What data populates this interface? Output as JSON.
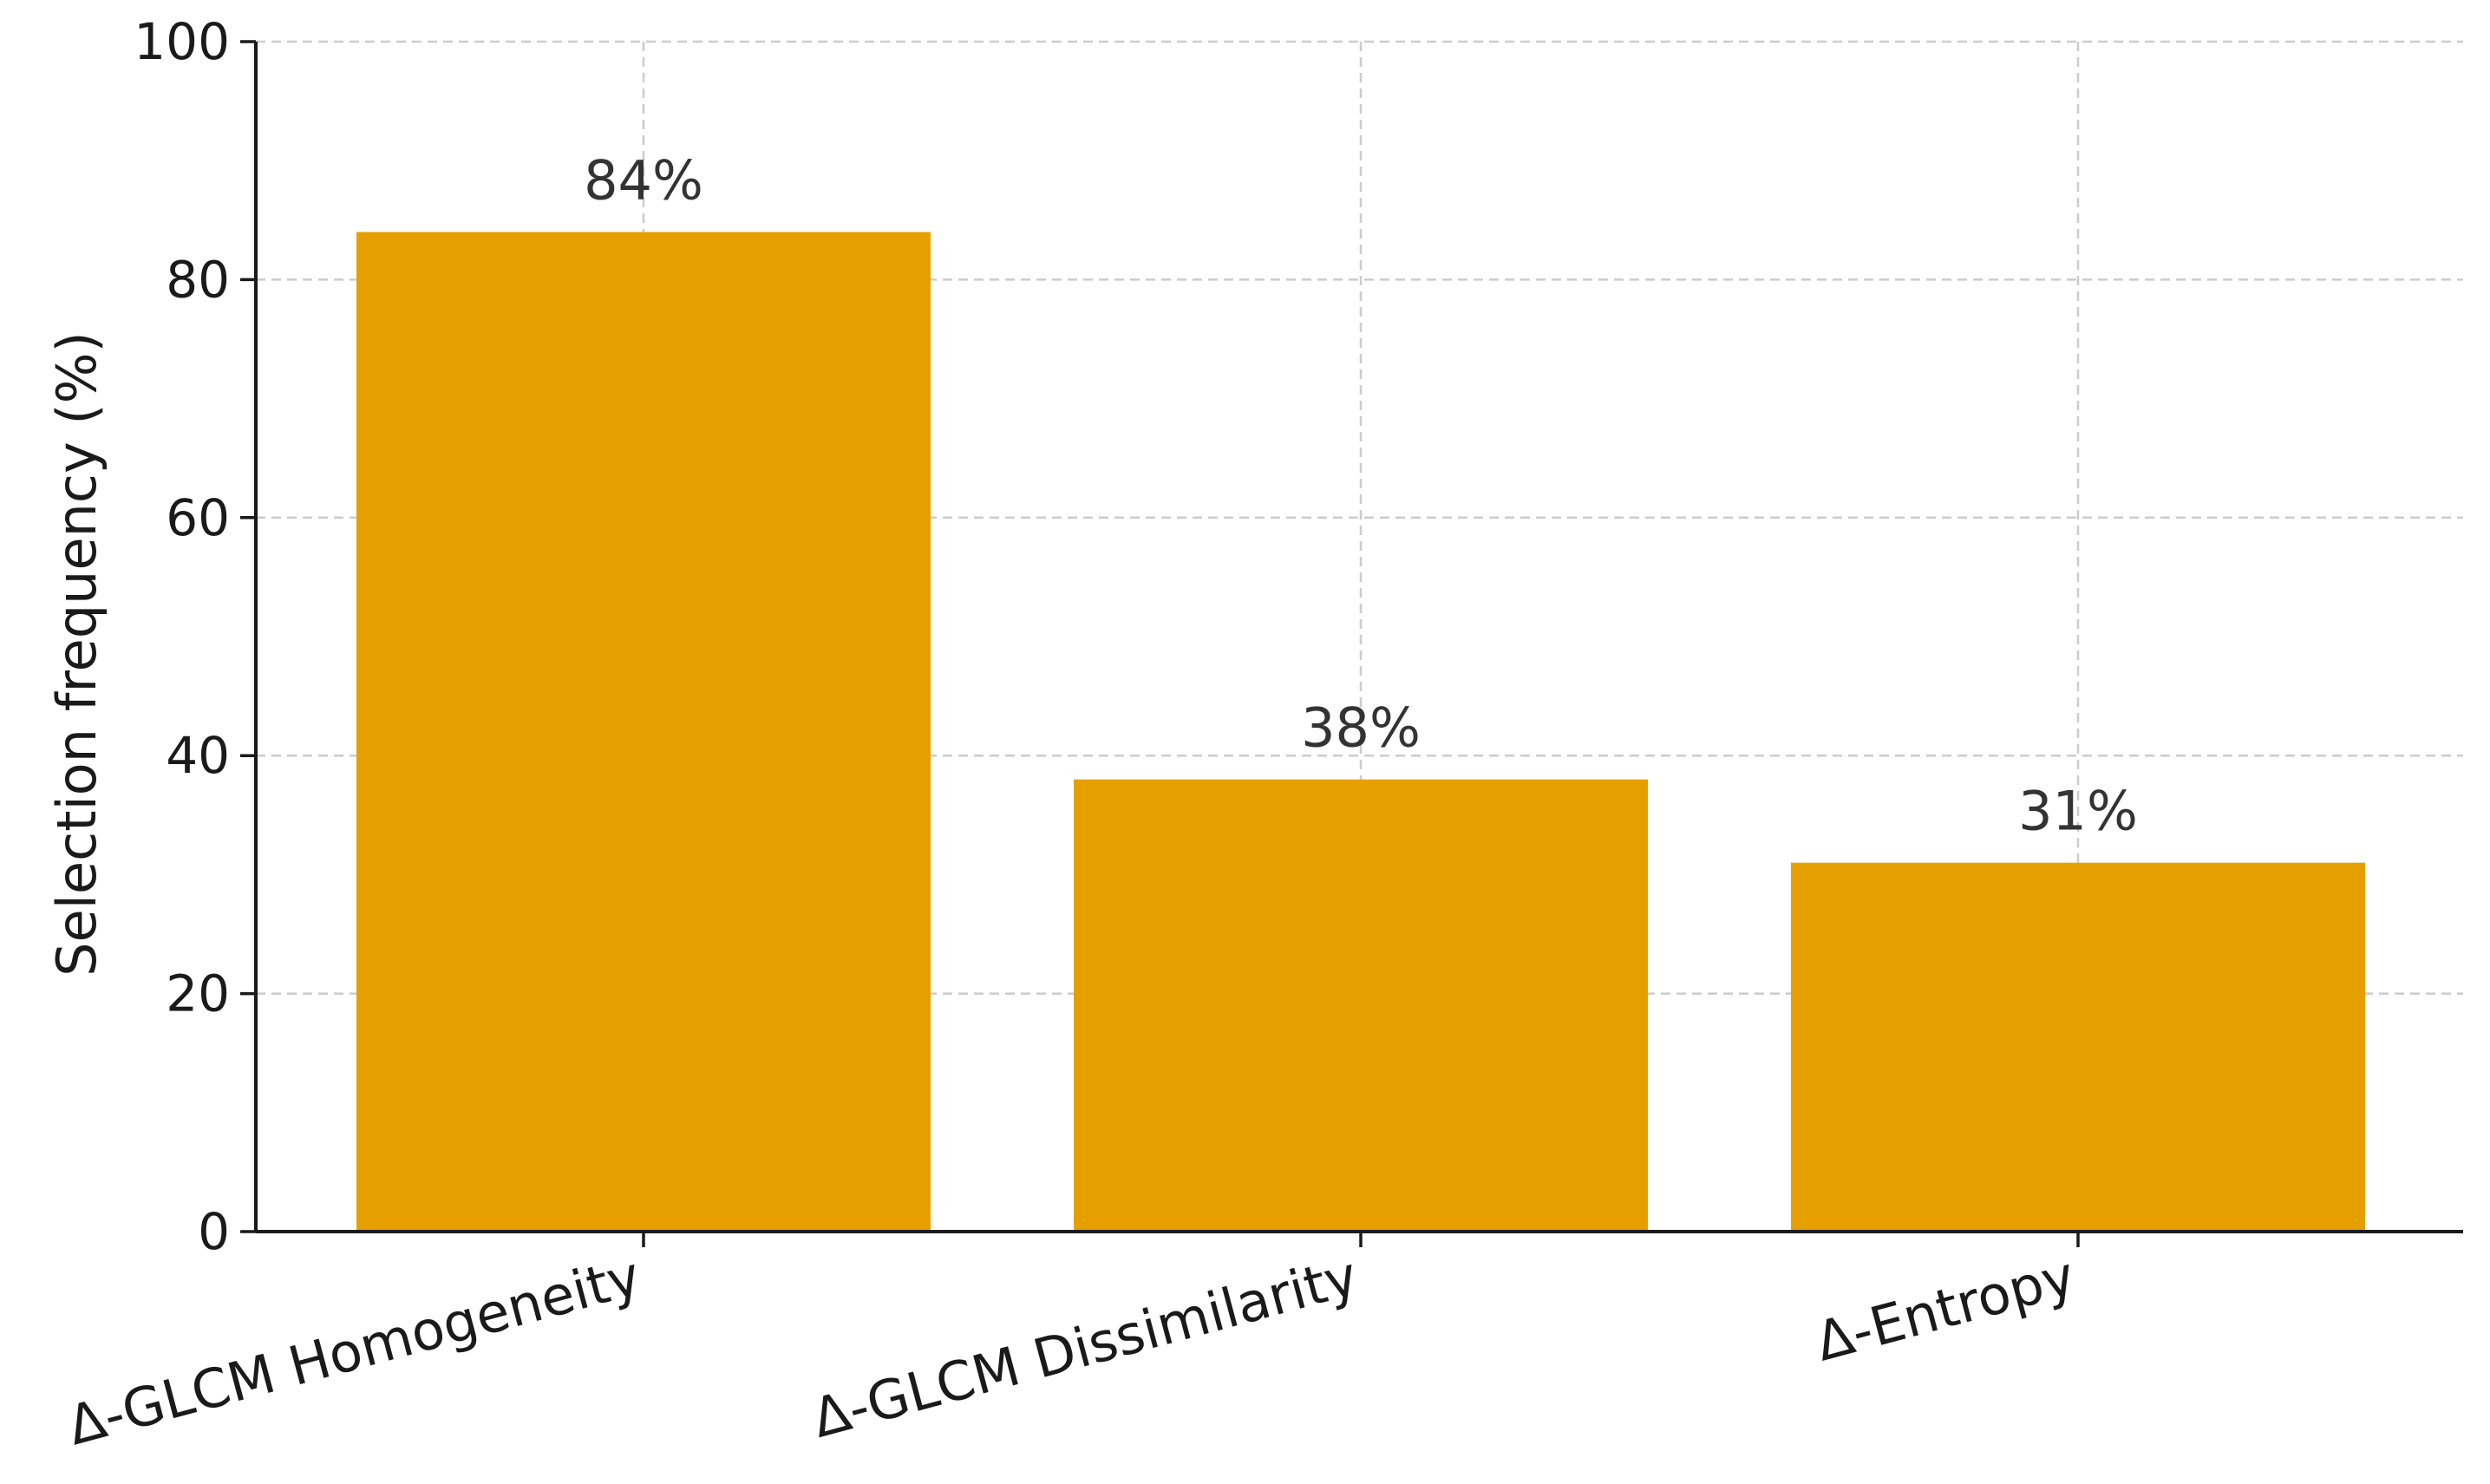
{
  "chart_data": {
    "type": "bar",
    "categories": [
      "Δ-GLCM Homogeneity",
      "Δ-GLCM Dissimilarity",
      "Δ-Entropy"
    ],
    "values": [
      84,
      38,
      31
    ],
    "value_labels": [
      "84%",
      "38%",
      "31%"
    ],
    "title": "",
    "xlabel": "",
    "ylabel": "Selection frequency (%)",
    "ylim": [
      0,
      100
    ],
    "yticks": [
      0,
      20,
      40,
      60,
      80,
      100
    ],
    "grid": true,
    "bar_color": "#E5A000",
    "category_label_rotation_deg": -15
  }
}
